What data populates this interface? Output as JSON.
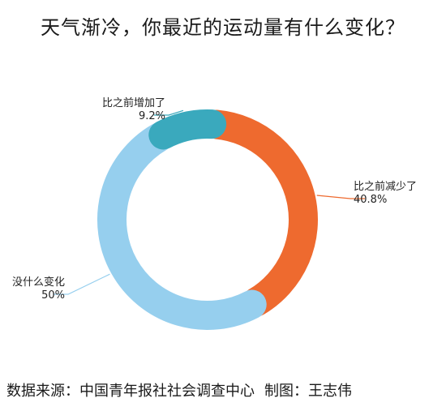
{
  "chart_data": {
    "type": "pie",
    "title": "天气渐冷，你最近的运动量有什么变化？",
    "slices": [
      {
        "label": "比之前减少了",
        "value": 40.8,
        "value_label": "40.8%",
        "color": "#ee6a2f"
      },
      {
        "label": "没什么变化",
        "value": 50,
        "value_label": "50%",
        "color": "#96cfee"
      },
      {
        "label": "比之前增加了",
        "value": 9.2,
        "value_label": "9.2%",
        "color": "#3aa9bd"
      }
    ]
  },
  "footer": {
    "source": "数据来源：中国青年报社社会调查中心",
    "credit": "制图：王志伟"
  }
}
